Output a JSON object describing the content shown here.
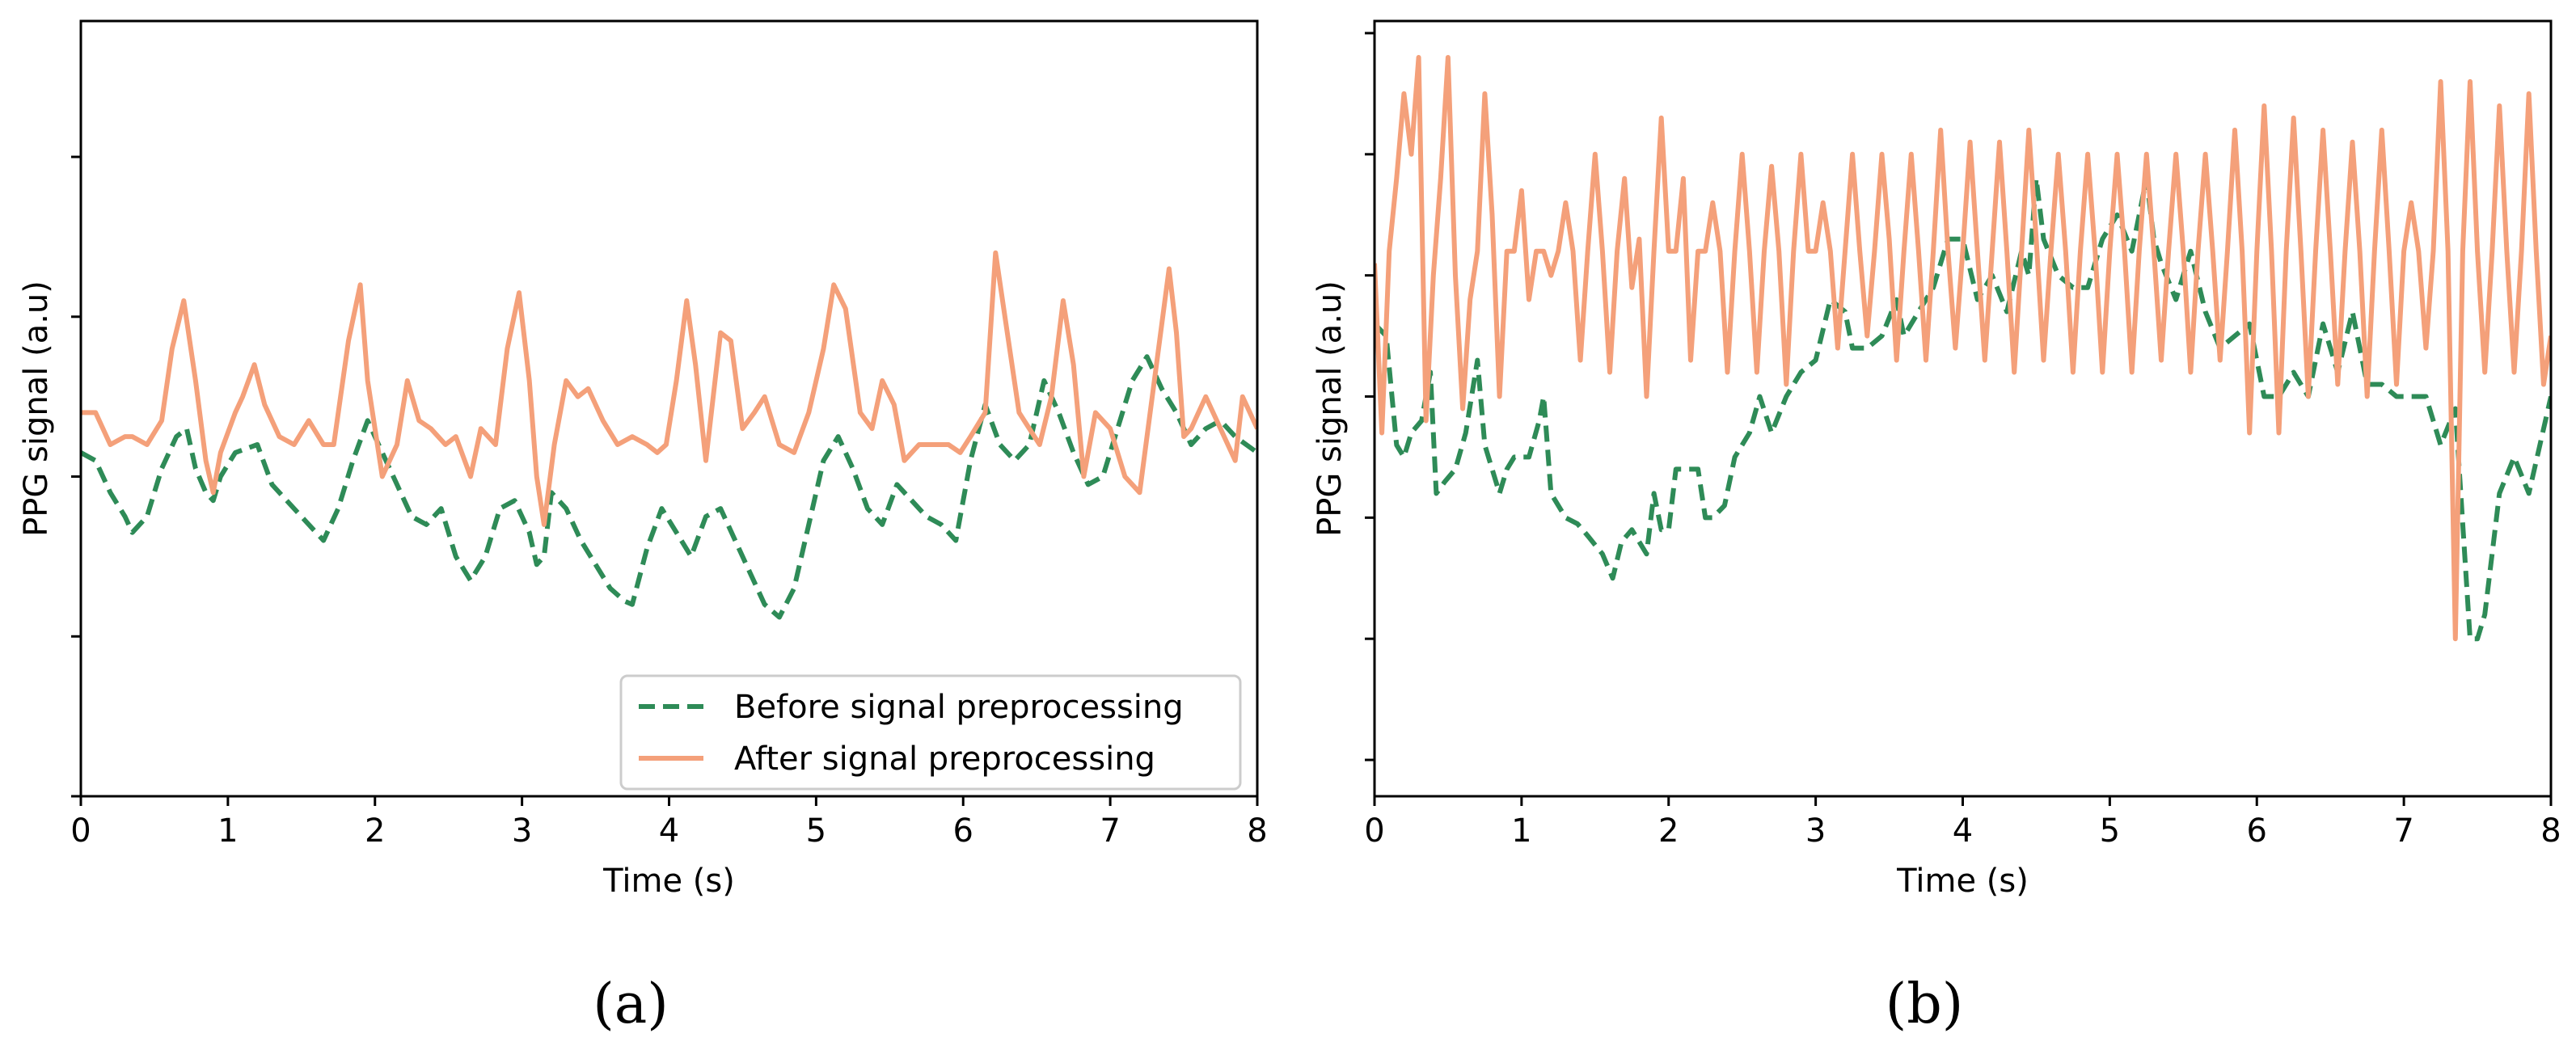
{
  "chart_data": [
    {
      "type": "line",
      "panel_label": "(a)",
      "xlabel": "Time (s)",
      "ylabel": "PPG signal (a.u)",
      "xlim": [
        0,
        8
      ],
      "ylim": [
        -2.0,
        2.85
      ],
      "x_ticks": [
        0,
        1,
        2,
        3,
        4,
        5,
        6,
        7,
        8
      ],
      "y_ticks": [
        -2,
        -1,
        0,
        1,
        2
      ],
      "y_tick_labels_shown": false,
      "grid": false,
      "legend": {
        "location": "lower-right",
        "entries": [
          "Before signal preprocessing",
          "After signal preprocessing"
        ]
      },
      "series": [
        {
          "name": "Before signal preprocessing",
          "color": "#2e8b57",
          "style": "dashed",
          "x": [
            0,
            0.1,
            0.2,
            0.3,
            0.35,
            0.45,
            0.55,
            0.65,
            0.72,
            0.78,
            0.85,
            0.9,
            0.95,
            1.05,
            1.2,
            1.3,
            1.4,
            1.55,
            1.65,
            1.75,
            1.85,
            1.95,
            2.05,
            2.15,
            2.25,
            2.35,
            2.45,
            2.55,
            2.65,
            2.75,
            2.85,
            2.95,
            3.05,
            3.1,
            3.15,
            3.2,
            3.3,
            3.4,
            3.5,
            3.6,
            3.7,
            3.75,
            3.85,
            3.95,
            4.05,
            4.15,
            4.25,
            4.35,
            4.45,
            4.55,
            4.65,
            4.75,
            4.85,
            4.95,
            5.05,
            5.15,
            5.25,
            5.35,
            5.45,
            5.55,
            5.65,
            5.75,
            5.85,
            5.95,
            6.05,
            6.15,
            6.25,
            6.35,
            6.45,
            6.55,
            6.65,
            6.75,
            6.85,
            6.95,
            7.05,
            7.15,
            7.25,
            7.35,
            7.45,
            7.55,
            7.65,
            7.75,
            7.85,
            8.0
          ],
          "y": [
            0.15,
            0.1,
            -0.1,
            -0.25,
            -0.35,
            -0.25,
            0.05,
            0.25,
            0.3,
            0.05,
            -0.1,
            -0.15,
            0.0,
            0.15,
            0.2,
            -0.05,
            -0.15,
            -0.3,
            -0.4,
            -0.2,
            0.1,
            0.35,
            0.15,
            -0.05,
            -0.25,
            -0.3,
            -0.2,
            -0.5,
            -0.65,
            -0.5,
            -0.2,
            -0.15,
            -0.35,
            -0.55,
            -0.5,
            -0.1,
            -0.2,
            -0.4,
            -0.55,
            -0.7,
            -0.78,
            -0.8,
            -0.45,
            -0.2,
            -0.35,
            -0.5,
            -0.25,
            -0.2,
            -0.4,
            -0.6,
            -0.8,
            -0.88,
            -0.7,
            -0.3,
            0.1,
            0.25,
            0.05,
            -0.2,
            -0.3,
            -0.05,
            -0.15,
            -0.25,
            -0.3,
            -0.4,
            0.1,
            0.45,
            0.2,
            0.1,
            0.2,
            0.6,
            0.4,
            0.15,
            -0.05,
            0.0,
            0.3,
            0.6,
            0.75,
            0.55,
            0.4,
            0.2,
            0.3,
            0.35,
            0.25,
            0.15
          ]
        },
        {
          "name": "After signal preprocessing",
          "color": "#f4a07a",
          "style": "solid",
          "x": [
            0,
            0.1,
            0.2,
            0.3,
            0.35,
            0.45,
            0.55,
            0.62,
            0.7,
            0.78,
            0.85,
            0.9,
            0.95,
            1.05,
            1.1,
            1.18,
            1.25,
            1.35,
            1.45,
            1.55,
            1.65,
            1.72,
            1.82,
            1.9,
            1.95,
            2.05,
            2.15,
            2.22,
            2.3,
            2.38,
            2.48,
            2.55,
            2.65,
            2.72,
            2.82,
            2.9,
            2.98,
            3.05,
            3.1,
            3.15,
            3.22,
            3.3,
            3.38,
            3.45,
            3.55,
            3.65,
            3.75,
            3.85,
            3.92,
            3.98,
            4.05,
            4.12,
            4.18,
            4.25,
            4.3,
            4.35,
            4.42,
            4.5,
            4.58,
            4.65,
            4.75,
            4.85,
            4.95,
            5.05,
            5.12,
            5.2,
            5.3,
            5.38,
            5.45,
            5.53,
            5.6,
            5.7,
            5.8,
            5.9,
            5.98,
            6.05,
            6.15,
            6.22,
            6.3,
            6.38,
            6.45,
            6.52,
            6.6,
            6.68,
            6.75,
            6.82,
            6.9,
            7.0,
            7.1,
            7.2,
            7.3,
            7.4,
            7.45,
            7.5,
            7.55,
            7.65,
            7.75,
            7.85,
            7.9,
            8.0
          ],
          "y": [
            0.4,
            0.4,
            0.2,
            0.25,
            0.25,
            0.2,
            0.35,
            0.8,
            1.1,
            0.6,
            0.1,
            -0.1,
            0.15,
            0.4,
            0.5,
            0.7,
            0.45,
            0.25,
            0.2,
            0.35,
            0.2,
            0.2,
            0.85,
            1.2,
            0.6,
            0.0,
            0.2,
            0.6,
            0.35,
            0.3,
            0.2,
            0.25,
            0.0,
            0.3,
            0.2,
            0.8,
            1.15,
            0.6,
            0.0,
            -0.3,
            0.2,
            0.6,
            0.5,
            0.55,
            0.35,
            0.2,
            0.25,
            0.2,
            0.15,
            0.2,
            0.6,
            1.1,
            0.7,
            0.1,
            0.5,
            0.9,
            0.85,
            0.3,
            0.4,
            0.5,
            0.2,
            0.15,
            0.4,
            0.8,
            1.2,
            1.05,
            0.4,
            0.3,
            0.6,
            0.45,
            0.1,
            0.2,
            0.2,
            0.2,
            0.15,
            0.25,
            0.4,
            1.4,
            0.9,
            0.4,
            0.3,
            0.2,
            0.5,
            1.1,
            0.7,
            0.0,
            0.4,
            0.3,
            0.0,
            -0.1,
            0.6,
            1.3,
            0.9,
            0.25,
            0.3,
            0.5,
            0.3,
            0.1,
            0.5,
            0.3
          ]
        }
      ]
    },
    {
      "type": "line",
      "panel_label": "(b)",
      "xlabel": "Time (s)",
      "ylabel": "PPG signal (a.u)",
      "xlim": [
        0,
        8
      ],
      "ylim": [
        -3.3,
        3.1
      ],
      "x_ticks": [
        0,
        1,
        2,
        3,
        4,
        5,
        6,
        7,
        8
      ],
      "y_ticks": [
        -3,
        -2,
        -1,
        0,
        1,
        2,
        3
      ],
      "y_tick_labels_shown": false,
      "grid": false,
      "series": [
        {
          "name": "Before signal preprocessing",
          "color": "#2e8b57",
          "style": "dashed",
          "x": [
            0,
            0.08,
            0.15,
            0.2,
            0.25,
            0.32,
            0.38,
            0.42,
            0.48,
            0.55,
            0.62,
            0.7,
            0.75,
            0.85,
            0.9,
            0.95,
            1.05,
            1.12,
            1.15,
            1.2,
            1.3,
            1.38,
            1.45,
            1.55,
            1.62,
            1.68,
            1.75,
            1.85,
            1.9,
            1.95,
            2.0,
            2.05,
            2.12,
            2.2,
            2.25,
            2.3,
            2.38,
            2.45,
            2.55,
            2.62,
            2.7,
            2.8,
            2.9,
            3.0,
            3.1,
            3.2,
            3.25,
            3.35,
            3.45,
            3.55,
            3.6,
            3.7,
            3.8,
            3.9,
            4.0,
            4.1,
            4.2,
            4.3,
            4.4,
            4.45,
            4.5,
            4.55,
            4.65,
            4.75,
            4.85,
            4.95,
            5.05,
            5.15,
            5.25,
            5.3,
            5.35,
            5.45,
            5.55,
            5.65,
            5.75,
            5.85,
            5.95,
            6.05,
            6.15,
            6.25,
            6.35,
            6.45,
            6.55,
            6.65,
            6.75,
            6.85,
            6.95,
            7.05,
            7.15,
            7.25,
            7.35,
            7.45,
            7.5,
            7.55,
            7.65,
            7.75,
            7.85,
            8.0
          ],
          "y": [
            0.6,
            0.5,
            -0.4,
            -0.5,
            -0.3,
            -0.2,
            0.2,
            -0.8,
            -0.7,
            -0.6,
            -0.3,
            0.3,
            -0.4,
            -0.8,
            -0.6,
            -0.5,
            -0.5,
            -0.2,
            0.0,
            -0.8,
            -1.0,
            -1.05,
            -1.15,
            -1.3,
            -1.5,
            -1.2,
            -1.1,
            -1.3,
            -0.8,
            -1.1,
            -1.1,
            -0.6,
            -0.6,
            -0.6,
            -1.0,
            -1.0,
            -0.9,
            -0.5,
            -0.3,
            0.0,
            -0.3,
            0.0,
            0.2,
            0.3,
            0.8,
            0.7,
            0.4,
            0.4,
            0.5,
            0.8,
            0.5,
            0.7,
            0.9,
            1.3,
            1.3,
            0.8,
            1.0,
            0.7,
            1.2,
            1.0,
            1.8,
            1.3,
            1.0,
            0.9,
            0.9,
            1.3,
            1.5,
            1.2,
            1.8,
            1.3,
            1.1,
            0.8,
            1.2,
            0.7,
            0.4,
            0.5,
            0.6,
            0.0,
            0.0,
            0.2,
            0.0,
            0.6,
            0.2,
            0.7,
            0.1,
            0.1,
            0.0,
            0.0,
            0.0,
            -0.4,
            -0.1,
            -2.0,
            -2.0,
            -1.8,
            -0.8,
            -0.5,
            -0.8,
            0.0
          ]
        },
        {
          "name": "After signal preprocessing",
          "color": "#f4a07a",
          "style": "solid",
          "x": [
            0,
            0.05,
            0.1,
            0.15,
            0.2,
            0.25,
            0.3,
            0.35,
            0.4,
            0.45,
            0.5,
            0.55,
            0.6,
            0.65,
            0.7,
            0.75,
            0.8,
            0.85,
            0.9,
            0.95,
            1.0,
            1.05,
            1.1,
            1.15,
            1.2,
            1.25,
            1.3,
            1.35,
            1.4,
            1.45,
            1.5,
            1.55,
            1.6,
            1.65,
            1.7,
            1.75,
            1.8,
            1.85,
            1.9,
            1.95,
            2.0,
            2.05,
            2.1,
            2.15,
            2.2,
            2.25,
            2.3,
            2.35,
            2.4,
            2.45,
            2.5,
            2.55,
            2.6,
            2.65,
            2.7,
            2.75,
            2.8,
            2.85,
            2.9,
            2.95,
            3.0,
            3.05,
            3.1,
            3.15,
            3.2,
            3.25,
            3.3,
            3.35,
            3.4,
            3.45,
            3.5,
            3.55,
            3.6,
            3.65,
            3.7,
            3.75,
            3.8,
            3.85,
            3.9,
            3.95,
            4.0,
            4.05,
            4.1,
            4.15,
            4.2,
            4.25,
            4.3,
            4.35,
            4.4,
            4.45,
            4.5,
            4.55,
            4.6,
            4.65,
            4.7,
            4.75,
            4.8,
            4.85,
            4.9,
            4.95,
            5.0,
            5.05,
            5.1,
            5.15,
            5.2,
            5.25,
            5.3,
            5.35,
            5.4,
            5.45,
            5.5,
            5.55,
            5.6,
            5.65,
            5.7,
            5.75,
            5.8,
            5.85,
            5.9,
            5.95,
            6.0,
            6.05,
            6.1,
            6.15,
            6.2,
            6.25,
            6.3,
            6.35,
            6.4,
            6.45,
            6.5,
            6.55,
            6.6,
            6.65,
            6.7,
            6.75,
            6.8,
            6.85,
            6.9,
            6.95,
            7.0,
            7.05,
            7.1,
            7.15,
            7.2,
            7.25,
            7.3,
            7.35,
            7.4,
            7.45,
            7.5,
            7.55,
            7.6,
            7.65,
            7.7,
            7.75,
            7.8,
            7.85,
            7.9,
            7.95,
            8.0
          ],
          "y": [
            1.1,
            -0.3,
            1.2,
            1.8,
            2.5,
            2.0,
            2.8,
            -0.2,
            1.0,
            1.8,
            2.8,
            1.0,
            -0.1,
            0.8,
            1.2,
            2.5,
            1.5,
            0.0,
            1.2,
            1.2,
            1.7,
            0.8,
            1.2,
            1.2,
            1.0,
            1.2,
            1.6,
            1.2,
            0.3,
            1.2,
            2.0,
            1.2,
            0.2,
            1.2,
            1.8,
            0.9,
            1.3,
            0.0,
            1.2,
            2.3,
            1.2,
            1.2,
            1.8,
            0.3,
            1.2,
            1.2,
            1.6,
            1.2,
            0.2,
            1.2,
            2.0,
            1.2,
            0.2,
            1.2,
            1.9,
            1.2,
            0.1,
            1.2,
            2.0,
            1.2,
            1.2,
            1.6,
            1.2,
            0.4,
            1.2,
            2.0,
            1.2,
            0.5,
            1.2,
            2.0,
            1.3,
            0.3,
            1.2,
            2.0,
            1.2,
            0.3,
            1.2,
            2.2,
            1.2,
            0.4,
            1.2,
            2.1,
            1.2,
            0.3,
            1.2,
            2.1,
            1.2,
            0.2,
            1.2,
            2.2,
            1.3,
            0.3,
            1.2,
            2.0,
            1.2,
            0.2,
            1.2,
            2.0,
            1.2,
            0.2,
            1.2,
            2.0,
            1.2,
            0.2,
            1.2,
            2.0,
            1.2,
            0.3,
            1.2,
            2.0,
            1.2,
            0.2,
            1.2,
            2.0,
            1.2,
            0.3,
            1.2,
            2.2,
            1.2,
            -0.3,
            1.2,
            2.4,
            1.2,
            -0.3,
            1.2,
            2.3,
            1.2,
            0.0,
            1.2,
            2.2,
            1.2,
            0.1,
            1.2,
            2.1,
            1.2,
            0.0,
            1.2,
            2.2,
            1.2,
            0.1,
            1.2,
            1.6,
            1.2,
            0.4,
            1.2,
            2.6,
            1.2,
            -2.0,
            1.2,
            2.6,
            1.2,
            0.2,
            1.2,
            2.4,
            1.2,
            0.2,
            1.2,
            2.5,
            1.2,
            0.1,
            0.5
          ]
        }
      ]
    }
  ]
}
